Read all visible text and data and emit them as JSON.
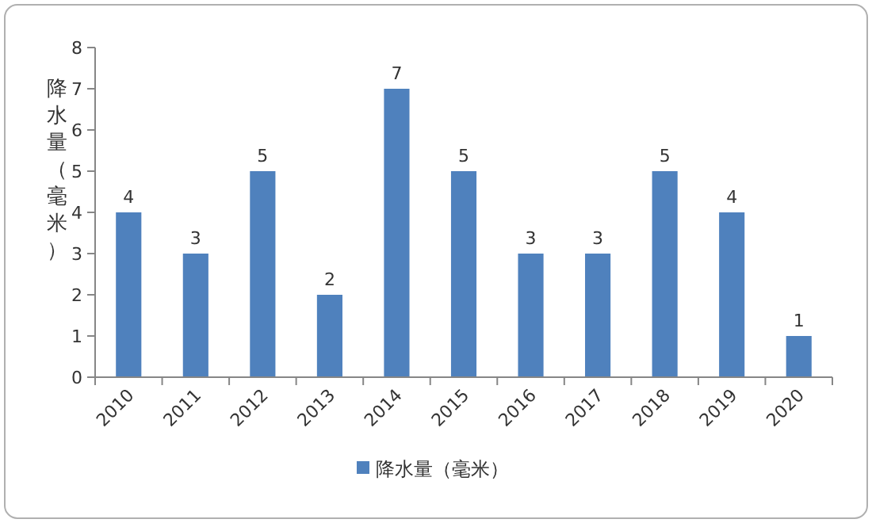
{
  "chart_data": {
    "type": "bar",
    "ylabel": "降水量（毫米）",
    "categories": [
      "2010",
      "2011",
      "2012",
      "2013",
      "2014",
      "2015",
      "2016",
      "2017",
      "2018",
      "2019",
      "2020"
    ],
    "series": [
      {
        "name": "降水量（毫米）",
        "color": "#4f81bd",
        "values": [
          4,
          3,
          5,
          2,
          7,
          5,
          3,
          3,
          5,
          4,
          1
        ]
      }
    ],
    "ylim": [
      0,
      8
    ],
    "yticks": [
      0,
      1,
      2,
      3,
      4,
      5,
      6,
      7,
      8
    ],
    "data_labels": true,
    "legend": "bottom"
  }
}
